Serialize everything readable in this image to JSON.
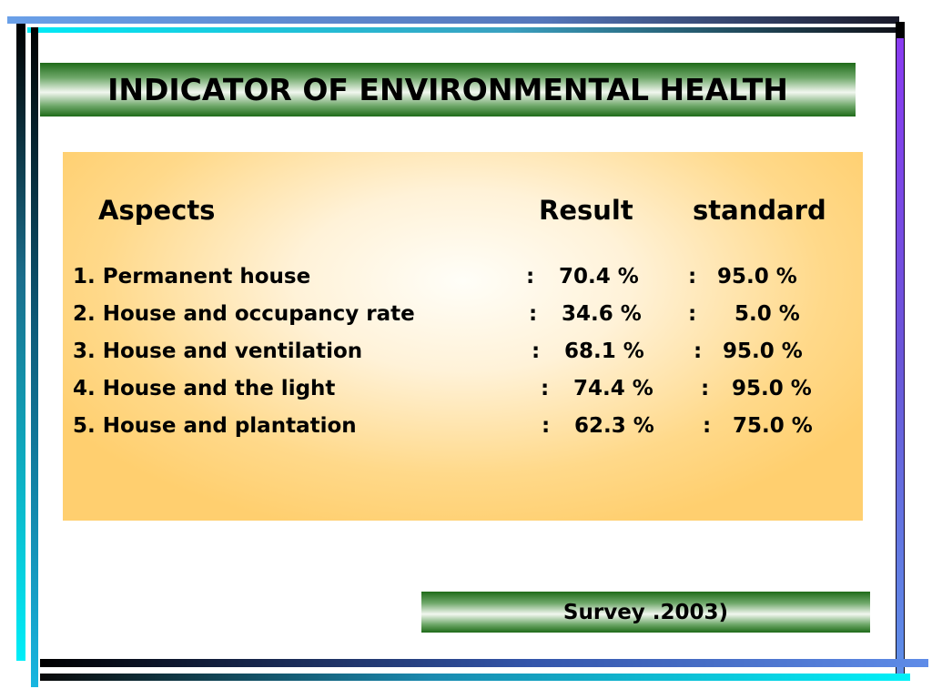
{
  "title": "INDICATOR OF ENVIRONMENTAL HEALTH",
  "table": {
    "headers": {
      "aspects": "Aspects",
      "result": "Result",
      "standard": "standard"
    },
    "rows": [
      {
        "aspect": "1. Permanent house",
        "sep1": ":",
        "result": "70.4 %",
        "sep2": ":",
        "standard": "95.0 %"
      },
      {
        "aspect": "2. House and occupancy rate",
        "sep1": ":",
        "result": "34.6 %",
        "sep2": ":",
        "standard": "5.0 %"
      },
      {
        "aspect": "3. House and ventilation",
        "sep1": ":",
        "result": "68.1 %",
        "sep2": ":",
        "standard": "95.0 %"
      },
      {
        "aspect": "4. House and the light",
        "sep1": ":",
        "result": "74.4 %",
        "sep2": ":",
        "standard": "95.0 %"
      },
      {
        "aspect": "5. House and plantation",
        "sep1": ":",
        "result": "62.3 %",
        "sep2": ":",
        "standard": "75.0 %"
      }
    ]
  },
  "source": "Survey .2003)",
  "colors": {
    "banner_dark_green": "#1f6b19",
    "panel_orange": "#ffcf6f"
  }
}
